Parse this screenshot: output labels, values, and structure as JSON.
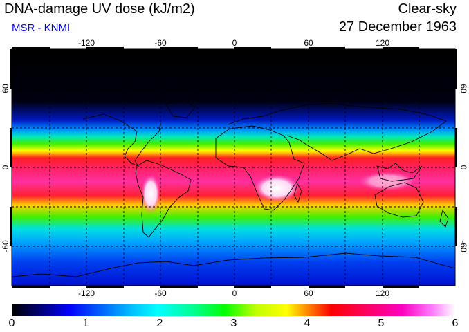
{
  "header": {
    "title": "DNA-damage UV dose (kJ/m2)",
    "subtitle": "MSR - KNMI",
    "sky_condition": "Clear-sky",
    "date": "27 December 1963"
  },
  "map": {
    "lon_ticks": [
      "-120",
      "-60",
      "0",
      "60",
      "120"
    ],
    "lat_ticks_left": [
      "60",
      "0",
      "-60"
    ],
    "lat_ticks_right": [
      "60",
      "0",
      "-60"
    ],
    "lon_range": [
      -180,
      180
    ],
    "lat_range": [
      -90,
      90
    ]
  },
  "colorbar": {
    "ticks": [
      "0",
      "1",
      "2",
      "3",
      "4",
      "5",
      "6"
    ],
    "range": [
      0,
      6
    ]
  },
  "colors": {
    "subtitle": "#0000ee",
    "title": "#000000"
  }
}
